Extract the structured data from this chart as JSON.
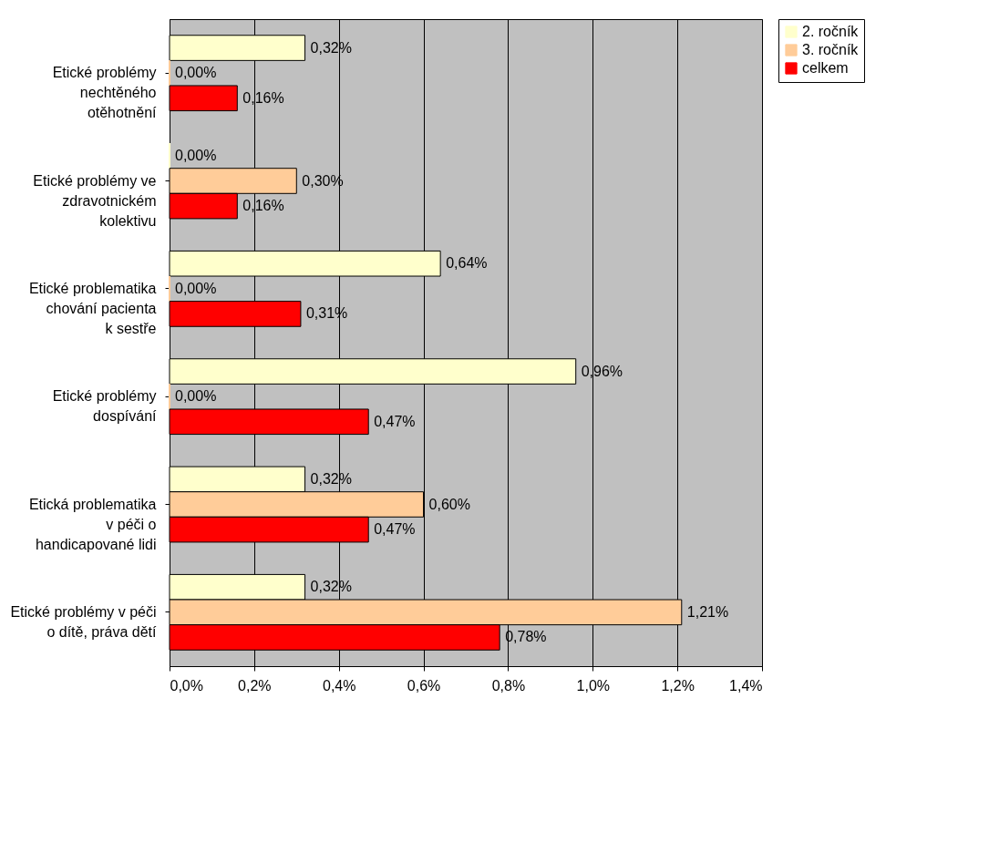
{
  "chart_data": {
    "type": "bar",
    "orientation": "horizontal",
    "categories": [
      "Etické problémy\nnechtěného\notěhotnění",
      "Etické problémy ve\nzdravotnickém\nkolektivu",
      "Etické problematika\nchování pacienta\nk sestře",
      "Etické problémy\ndospívání",
      "Etická problematika\nv péči o\nhandicapované lidi",
      "Etické problémy v péči\no dítě, práva dětí"
    ],
    "series": [
      {
        "name": "2. ročník",
        "color": "#ffffcc",
        "values": [
          0.32,
          0,
          0.64,
          0.96,
          0.32,
          0.32
        ],
        "value_labels": [
          "0,32%",
          "0,00%",
          "0,64%",
          "0,96%",
          "0,32%",
          "0,32%"
        ]
      },
      {
        "name": "3. ročník",
        "color": "#ffcc99",
        "values": [
          0,
          0.3,
          0,
          0,
          0.6,
          1.21
        ],
        "value_labels": [
          "0,00%",
          "0,30%",
          "0,00%",
          "0,00%",
          "0,60%",
          "1,21%"
        ]
      },
      {
        "name": "celkem",
        "color": "#ff0000",
        "values": [
          0.16,
          0.16,
          0.31,
          0.47,
          0.47,
          0.78
        ],
        "value_labels": [
          "0,16%",
          "0,16%",
          "0,31%",
          "0,47%",
          "0,47%",
          "0,78%"
        ]
      }
    ],
    "xlim": [
      0,
      1.4
    ],
    "xticks": [
      {
        "value": 0,
        "label": "0,0%"
      },
      {
        "value": 0.2,
        "label": "0,2%"
      },
      {
        "value": 0.4,
        "label": "0,4%"
      },
      {
        "value": 0.6,
        "label": "0,6%"
      },
      {
        "value": 0.8,
        "label": "0,8%"
      },
      {
        "value": 1.0,
        "label": "1,0%"
      },
      {
        "value": 1.2,
        "label": "1,2%"
      },
      {
        "value": 1.4,
        "label": "1,4%"
      }
    ],
    "grid": "x",
    "legend": "right"
  }
}
